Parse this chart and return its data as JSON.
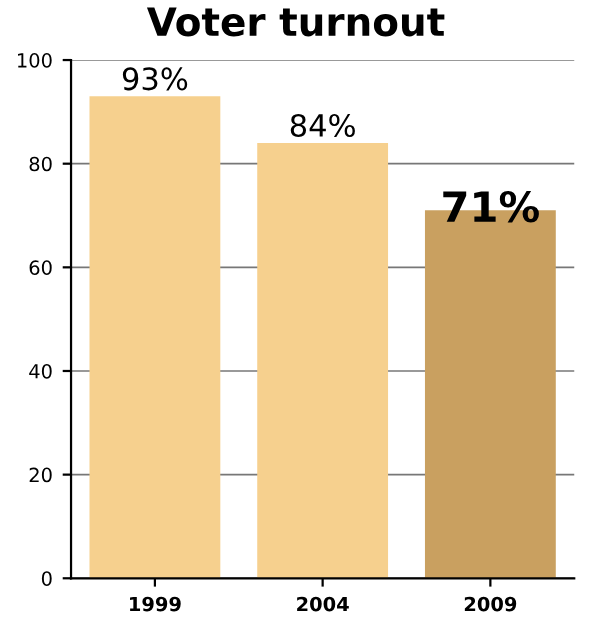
{
  "chart_data": {
    "type": "bar",
    "title": "Voter turnout",
    "categories": [
      "1999",
      "2004",
      "2009"
    ],
    "values": [
      93,
      84,
      71
    ],
    "value_labels": [
      "93%",
      "84%",
      "71%"
    ],
    "colors": [
      "#f6d08e",
      "#f6d08e",
      "#c9a060"
    ],
    "ylim": [
      0,
      100
    ],
    "yticks": [
      0,
      20,
      40,
      60,
      80,
      100
    ],
    "grid": "y"
  }
}
